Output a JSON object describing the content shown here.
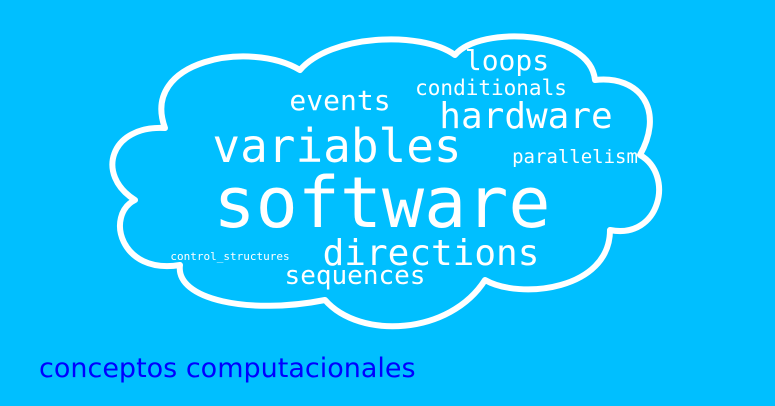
{
  "colors": {
    "background": "#00BFFF",
    "cloud_outline": "#FFFFFF",
    "word": "#FFFFFF",
    "caption": "#0000FF"
  },
  "words": [
    {
      "text": "software"
    },
    {
      "text": "variables"
    },
    {
      "text": "directions"
    },
    {
      "text": "hardware"
    },
    {
      "text": "events"
    },
    {
      "text": "loops"
    },
    {
      "text": "conditionals"
    },
    {
      "text": "parallelism"
    },
    {
      "text": "sequences"
    },
    {
      "text": "control_structures"
    }
  ],
  "caption": "conceptos computacionales"
}
